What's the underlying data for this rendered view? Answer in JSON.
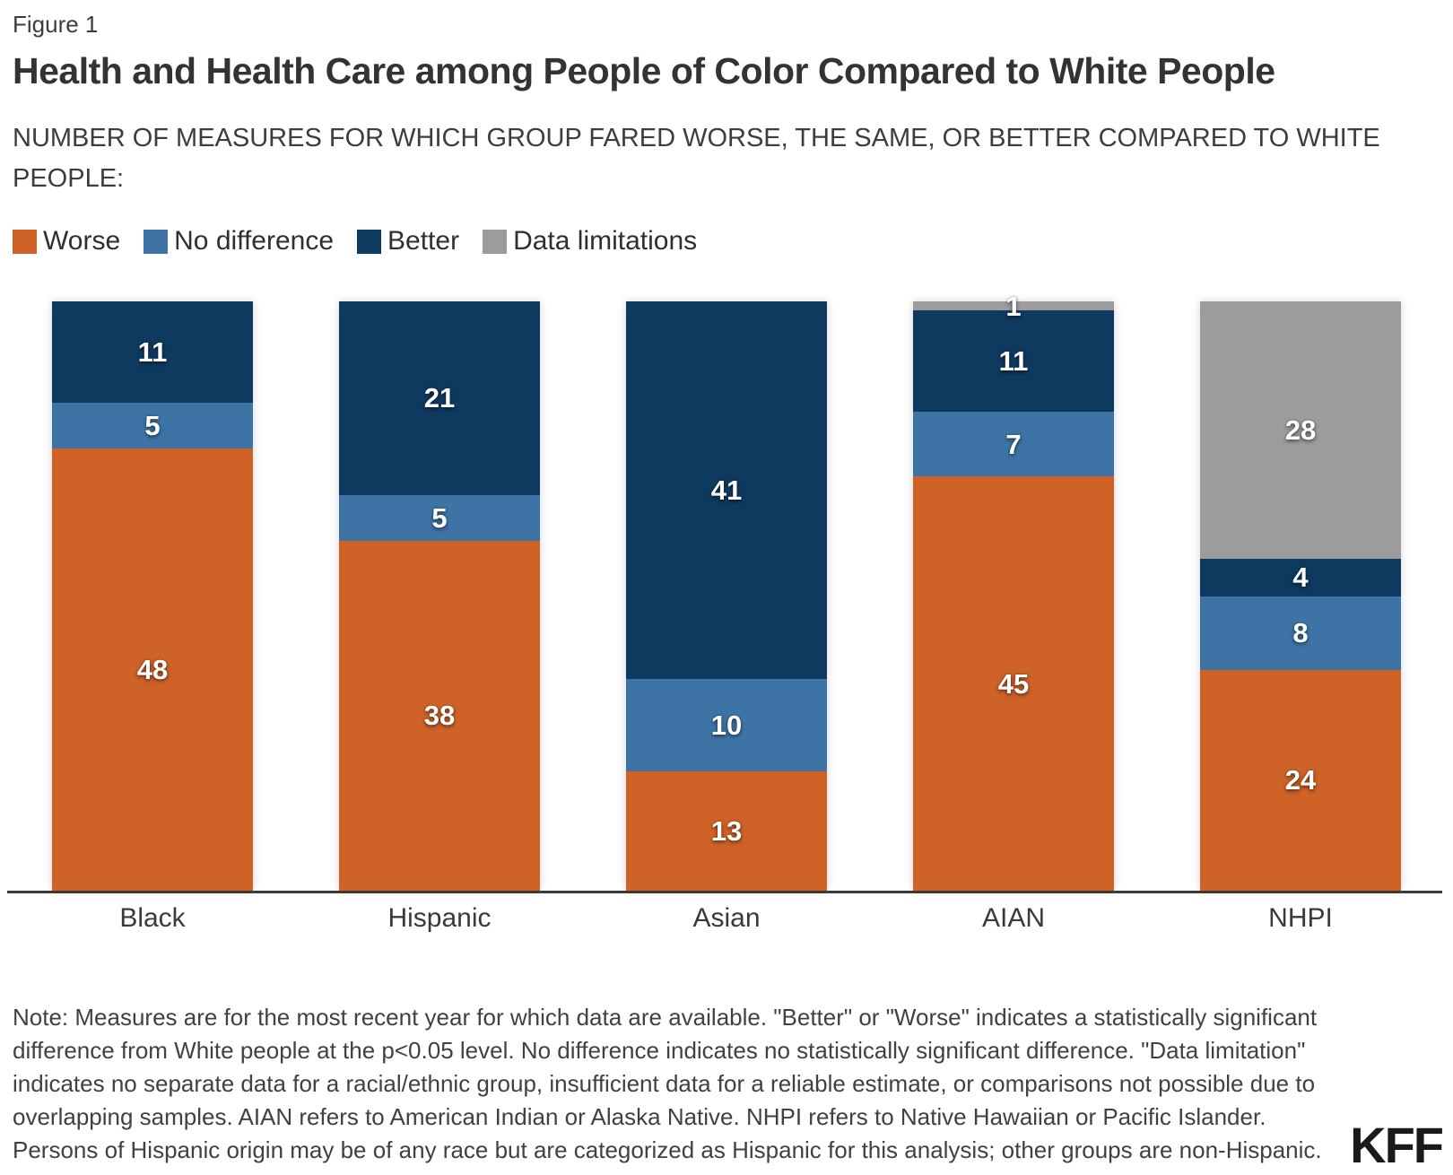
{
  "figure_label": "Figure 1",
  "title": "Health and Health Care among People of Color Compared to White People",
  "subtitle": "NUMBER OF MEASURES FOR WHICH GROUP FARED WORSE, THE SAME, OR BETTER COMPARED TO WHITE\nPEOPLE:",
  "colors": {
    "worse": "#ce6227",
    "no_difference": "#3d74a5",
    "better": "#0e3a5f",
    "data_limitations": "#9c9c9c"
  },
  "legend": [
    {
      "key": "worse",
      "label": "Worse"
    },
    {
      "key": "no_difference",
      "label": "No difference"
    },
    {
      "key": "better",
      "label": "Better"
    },
    {
      "key": "data_limitations",
      "label": "Data limitations"
    }
  ],
  "chart_data": {
    "type": "bar",
    "stacked": true,
    "categories": [
      "Black",
      "Hispanic",
      "Asian",
      "AIAN",
      "NHPI"
    ],
    "series": [
      {
        "name": "Worse",
        "key": "worse",
        "values": [
          48,
          38,
          13,
          45,
          24
        ]
      },
      {
        "name": "No difference",
        "key": "no_difference",
        "values": [
          5,
          5,
          10,
          7,
          8
        ]
      },
      {
        "name": "Better",
        "key": "better",
        "values": [
          11,
          21,
          41,
          11,
          4
        ]
      },
      {
        "name": "Data limitations",
        "key": "data_limitations",
        "values": [
          0,
          0,
          0,
          1,
          28
        ]
      }
    ],
    "ylim": [
      0,
      64
    ],
    "grid": false,
    "legend_position": "top",
    "value_labels": "inside-white"
  },
  "note": "Note: Measures are for the most recent year for which data are available. \"Better\" or \"Worse\" indicates a statistically significant\ndifference from White people at the p<0.05 level. No difference indicates no statistically significant difference. \"Data limitation\"\nindicates no separate data for a racial/ethnic group, insufficient data for a reliable estimate, or comparisons not possible due to\noverlapping samples. AIAN refers to American Indian or Alaska Native. NHPI refers to Native Hawaiian or Pacific Islander.\nPersons of Hispanic origin may be of any race but are categorized as Hispanic for this analysis; other groups are non-Hispanic.",
  "logo_text": "KFF"
}
